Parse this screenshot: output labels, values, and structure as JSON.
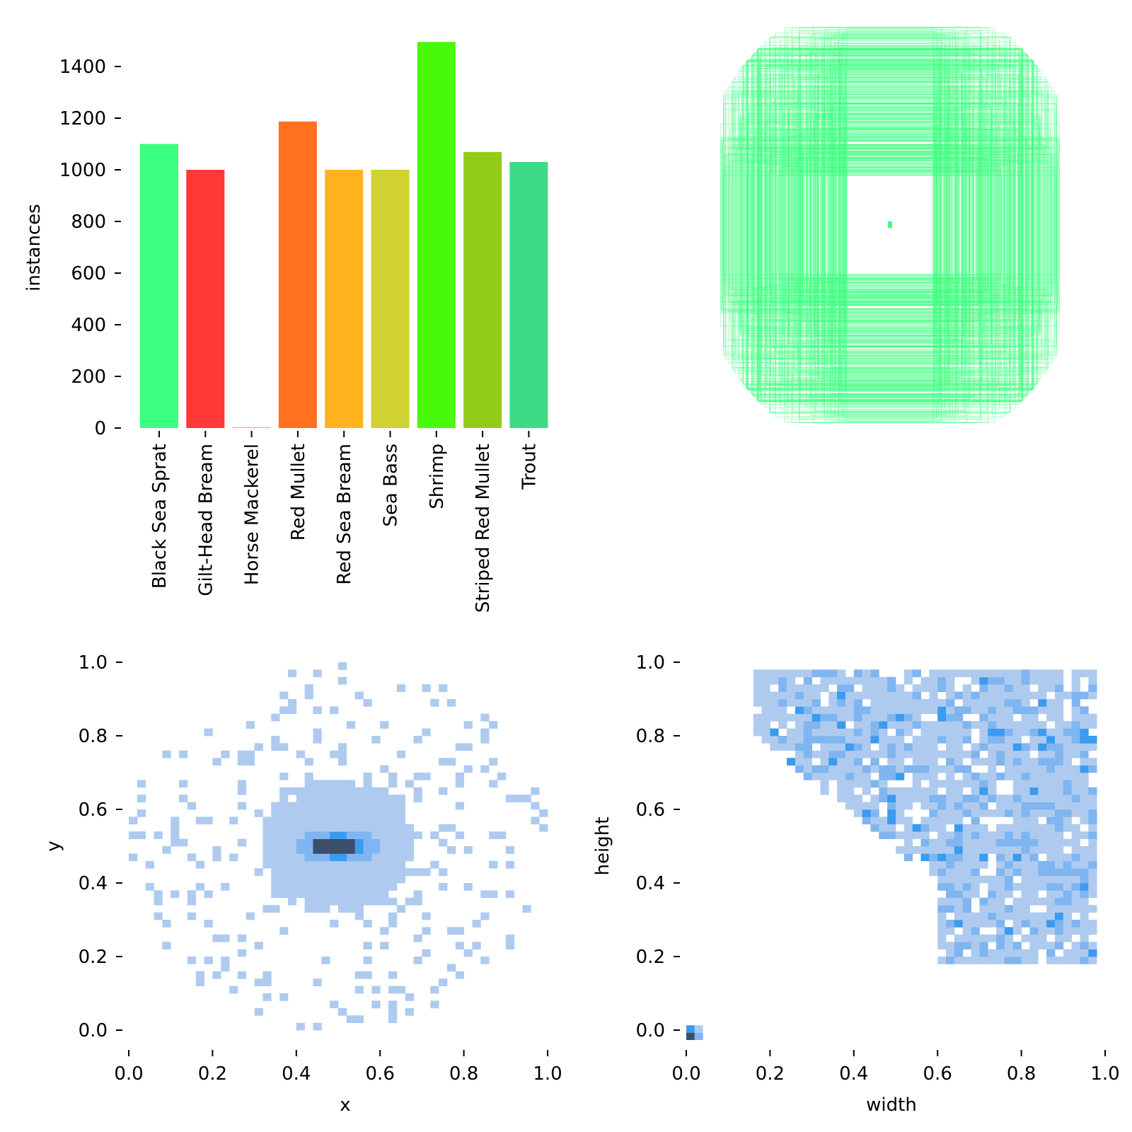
{
  "chart_data": [
    {
      "type": "bar",
      "title": "",
      "xlabel": "",
      "ylabel": "instances",
      "ylim": [
        0,
        1500
      ],
      "yticks": [
        "0",
        "200",
        "400",
        "600",
        "800",
        "1000",
        "1200",
        "1400"
      ],
      "ytick_values": [
        0,
        200,
        400,
        600,
        800,
        1000,
        1200,
        1400
      ],
      "categories": [
        "Black Sea Sprat",
        "Gilt-Head Bream",
        "Horse Mackerel",
        "Red Mullet",
        "Red Sea Bream",
        "Sea Bass",
        "Shrimp",
        "Striped Red Mullet",
        "Trout"
      ],
      "values": [
        1100,
        1000,
        2,
        1187,
        1000,
        1000,
        1495,
        1069,
        1030
      ],
      "colors": [
        "#3bff7f",
        "#ff3838",
        "#ff9d97",
        "#ff701f",
        "#ffb21d",
        "#cfd231",
        "#48f90a",
        "#92cc17",
        "#3ddb86"
      ]
    },
    {
      "type": "scatter",
      "description_type": "bounding-box overlay",
      "color": "#3bff7f"
    },
    {
      "type": "heatmap",
      "xlabel": "x",
      "ylabel": "y",
      "xlim": [
        0,
        1
      ],
      "ylim": [
        0,
        1
      ],
      "xticks": [
        "0.0",
        "0.2",
        "0.4",
        "0.6",
        "0.8",
        "1.0"
      ],
      "yticks": [
        "0.0",
        "0.2",
        "0.4",
        "0.6",
        "0.8",
        "1.0"
      ],
      "center": [
        0.5,
        0.5
      ],
      "colors": [
        "#aecbef",
        "#7fb5f0",
        "#3a9bef",
        "#3b4f6a"
      ]
    },
    {
      "type": "heatmap",
      "xlabel": "width",
      "ylabel": "height",
      "xlim": [
        0,
        1
      ],
      "ylim": [
        0,
        1
      ],
      "xticks": [
        "0.0",
        "0.2",
        "0.4",
        "0.6",
        "0.8",
        "1.0"
      ],
      "yticks": [
        "0.0",
        "0.2",
        "0.4",
        "0.6",
        "0.8",
        "1.0"
      ],
      "colors": [
        "#aecbef",
        "#7fb5f0",
        "#3a9bef",
        "#3b4f6a"
      ]
    }
  ]
}
